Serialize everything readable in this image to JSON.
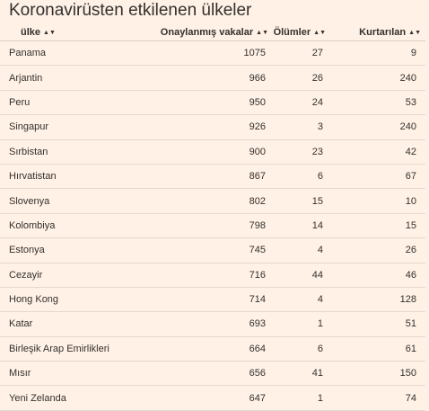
{
  "title": "Koronavirüsten etkilenen ülkeler",
  "columns": {
    "country": "ülke",
    "cases": "Onaylanmış vakalar",
    "deaths": "Ölümler",
    "recovered": "Kurtarılan",
    "sort_icon": "sort-arrows-icon"
  },
  "rows": [
    {
      "country": "Panama",
      "cases": "1075",
      "deaths": "27",
      "recovered": "9"
    },
    {
      "country": "Arjantin",
      "cases": "966",
      "deaths": "26",
      "recovered": "240"
    },
    {
      "country": "Peru",
      "cases": "950",
      "deaths": "24",
      "recovered": "53"
    },
    {
      "country": "Singapur",
      "cases": "926",
      "deaths": "3",
      "recovered": "240"
    },
    {
      "country": "Sırbistan",
      "cases": "900",
      "deaths": "23",
      "recovered": "42"
    },
    {
      "country": "Hırvatistan",
      "cases": "867",
      "deaths": "6",
      "recovered": "67"
    },
    {
      "country": "Slovenya",
      "cases": "802",
      "deaths": "15",
      "recovered": "10"
    },
    {
      "country": "Kolombiya",
      "cases": "798",
      "deaths": "14",
      "recovered": "15"
    },
    {
      "country": "Estonya",
      "cases": "745",
      "deaths": "4",
      "recovered": "26"
    },
    {
      "country": "Cezayir",
      "cases": "716",
      "deaths": "44",
      "recovered": "46"
    },
    {
      "country": "Hong Kong",
      "cases": "714",
      "deaths": "4",
      "recovered": "128"
    },
    {
      "country": "Katar",
      "cases": "693",
      "deaths": "1",
      "recovered": "51"
    },
    {
      "country": "Birleşik Arap Emirlikleri",
      "cases": "664",
      "deaths": "6",
      "recovered": "61"
    },
    {
      "country": "Mısır",
      "cases": "656",
      "deaths": "41",
      "recovered": "150"
    },
    {
      "country": "Yeni Zelanda",
      "cases": "647",
      "deaths": "1",
      "recovered": "74"
    }
  ],
  "colors": {
    "background": "#fff1e5",
    "text": "#33302e",
    "divider": "#e3d9cf"
  }
}
